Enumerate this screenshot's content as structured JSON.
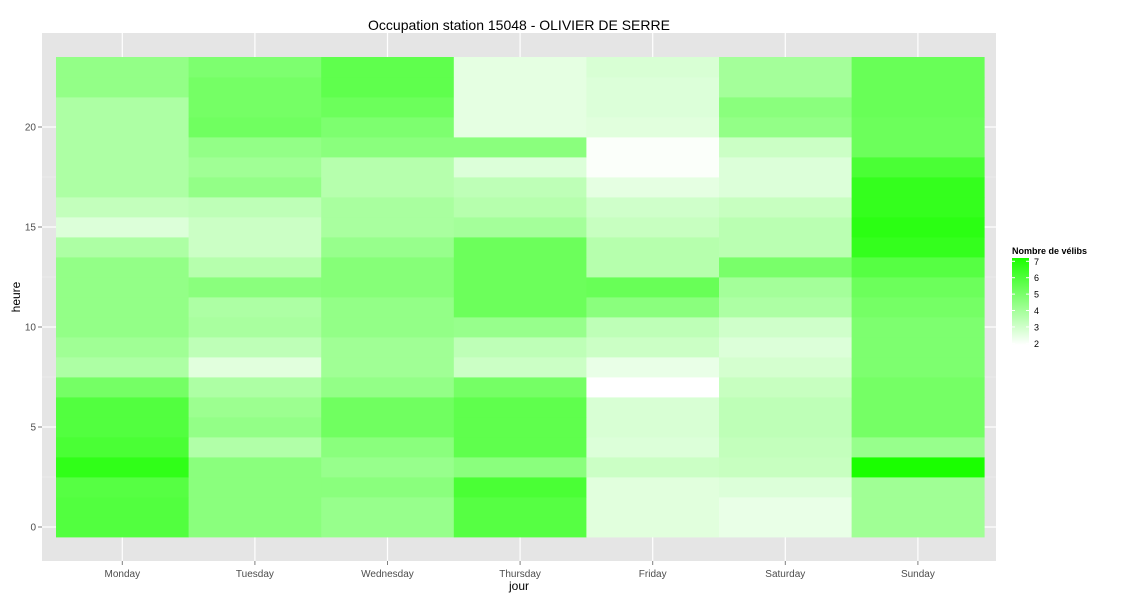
{
  "chart_data": {
    "type": "heatmap",
    "title": "Occupation station 15048 - OLIVIER DE SERRE",
    "xlabel": "jour",
    "ylabel": "heure",
    "x": [
      "Monday",
      "Tuesday",
      "Wednesday",
      "Thursday",
      "Friday",
      "Saturday",
      "Sunday"
    ],
    "y": [
      0,
      1,
      2,
      3,
      4,
      5,
      6,
      7,
      8,
      9,
      10,
      11,
      12,
      13,
      14,
      15,
      16,
      17,
      18,
      19,
      20,
      21,
      22,
      23
    ],
    "yticks": [
      0,
      5,
      10,
      15,
      20
    ],
    "ylim": [
      -0.5,
      23.5
    ],
    "grid": true,
    "colorscale": {
      "low": "#ffffff",
      "high": "#1aff00",
      "min": 1.9,
      "max": 7.2
    },
    "legend": {
      "title": "Nombre de vélibs",
      "ticks": [
        2,
        3,
        4,
        5,
        6,
        7
      ],
      "position": "right"
    },
    "values": [
      [
        5.9,
        4.6,
        4.3,
        5.8,
        2.6,
        2.4,
        4.1
      ],
      [
        5.9,
        4.6,
        4.3,
        5.8,
        2.6,
        2.4,
        4.1
      ],
      [
        5.8,
        4.6,
        4.6,
        6.1,
        2.6,
        2.7,
        4.1
      ],
      [
        6.7,
        4.6,
        4.3,
        4.6,
        3.1,
        3.2,
        7.2
      ],
      [
        6.1,
        3.7,
        4.6,
        5.6,
        2.7,
        3.3,
        4.3
      ],
      [
        5.9,
        4.4,
        5.2,
        5.6,
        2.8,
        3.4,
        5.1
      ],
      [
        5.9,
        4.2,
        5.2,
        5.6,
        2.8,
        3.4,
        5.1
      ],
      [
        5.1,
        3.8,
        4.4,
        5.1,
        1.9,
        3.2,
        5.1
      ],
      [
        3.8,
        2.6,
        4.1,
        3.1,
        2.4,
        2.9,
        4.9
      ],
      [
        4.1,
        3.4,
        4.1,
        3.4,
        3.1,
        2.7,
        4.9
      ],
      [
        4.4,
        3.9,
        4.4,
        4.3,
        3.4,
        3.0,
        4.9
      ],
      [
        4.4,
        3.8,
        4.4,
        5.3,
        4.6,
        3.8,
        5.1
      ],
      [
        4.4,
        4.6,
        4.7,
        5.3,
        5.4,
        4.0,
        5.3
      ],
      [
        4.4,
        3.6,
        4.7,
        5.3,
        3.6,
        5.0,
        5.8
      ],
      [
        3.8,
        3.1,
        4.3,
        5.3,
        3.6,
        3.5,
        6.6
      ],
      [
        2.7,
        3.1,
        3.9,
        4.0,
        3.2,
        3.5,
        6.8
      ],
      [
        3.3,
        3.4,
        3.9,
        3.6,
        3.0,
        3.2,
        6.6
      ],
      [
        3.8,
        4.4,
        3.6,
        3.4,
        2.5,
        2.7,
        6.6
      ],
      [
        3.8,
        4.1,
        3.6,
        2.7,
        2.0,
        2.7,
        6.1
      ],
      [
        3.8,
        4.4,
        4.6,
        4.6,
        2.0,
        3.1,
        5.3
      ],
      [
        3.8,
        5.2,
        4.9,
        2.5,
        2.6,
        4.4,
        5.3
      ],
      [
        3.8,
        5.1,
        5.3,
        2.5,
        2.7,
        4.6,
        5.4
      ],
      [
        4.4,
        5.1,
        5.6,
        2.5,
        2.7,
        4.0,
        5.4
      ],
      [
        4.4,
        4.9,
        5.6,
        2.5,
        2.8,
        4.0,
        5.4
      ]
    ]
  }
}
